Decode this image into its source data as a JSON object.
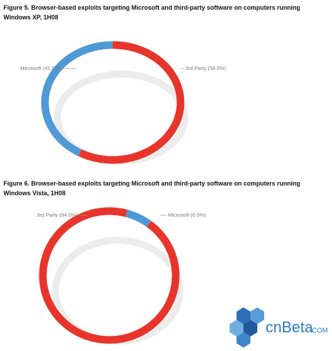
{
  "chart_data": [
    {
      "type": "donut",
      "title": "Figure 5. Browser-based exploits targeting Microsoft and third-party software on computers running Windows XP, 1H08",
      "values": [
        42,
        58
      ],
      "value_labels": [
        "Microsoft (42.0%)",
        "3rd Party (58.0%)"
      ],
      "colors": [
        "#4f9ad6",
        "#e8352b"
      ]
    },
    {
      "type": "donut",
      "title": "Figure 6. Browser-based exploits targeting Microsoft and third-party software on computers running Windows Vista, 1H08",
      "values": [
        6,
        94
      ],
      "value_labels": [
        "Microsoft (6.0%)",
        "3rd Party (94.0%)"
      ],
      "colors": [
        "#4f9ad6",
        "#e8352b"
      ]
    }
  ],
  "watermark": {
    "brand": "cnBeta",
    "suffix": ".COM"
  }
}
